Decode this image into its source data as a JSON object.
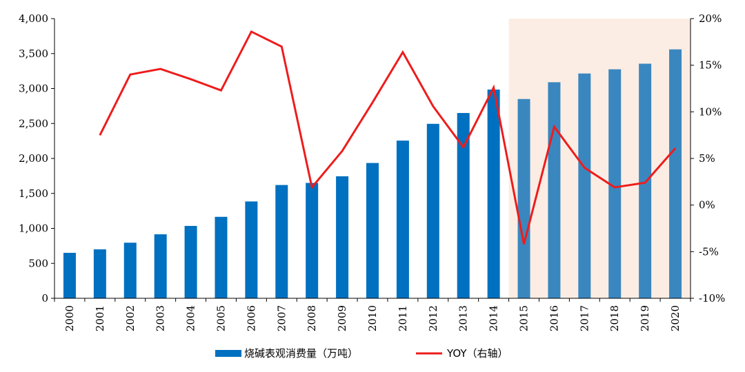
{
  "chart_data": {
    "type": "bar",
    "categories": [
      "2000",
      "2001",
      "2002",
      "2003",
      "2004",
      "2005",
      "2006",
      "2007",
      "2008",
      "2009",
      "2010",
      "2011",
      "2012",
      "2013",
      "2014",
      "2015",
      "2016",
      "2017",
      "2018",
      "2019",
      "2020"
    ],
    "series": [
      {
        "name": "烧碱表观消费量（万吨）",
        "type": "bar",
        "axis": "left",
        "color": "#0070C0",
        "forecast_color": "#3A87C0",
        "values": [
          650,
          700,
          795,
          915,
          1035,
          1165,
          1385,
          1620,
          1650,
          1745,
          1935,
          2255,
          2495,
          2650,
          2985,
          2850,
          3090,
          3215,
          3275,
          3355,
          3560
        ]
      },
      {
        "name": "YOY（右轴）",
        "type": "line",
        "axis": "right",
        "color": "#EE1C1C",
        "values": [
          null,
          7.5,
          14.0,
          14.6,
          13.5,
          12.3,
          18.6,
          17.0,
          1.9,
          5.8,
          11.0,
          16.4,
          10.6,
          6.2,
          12.6,
          -4.2,
          8.4,
          4.0,
          1.9,
          2.4,
          6.1
        ]
      }
    ],
    "forecast_shading": {
      "from": "2015",
      "to": "2020",
      "color": "#FBEDE3"
    },
    "y_left": {
      "ylim": [
        0,
        4000
      ],
      "ticks": [
        0,
        500,
        1000,
        1500,
        2000,
        2500,
        3000,
        3500,
        4000
      ],
      "tick_labels": [
        "0",
        "500",
        "1,000",
        "1,500",
        "2,000",
        "2,500",
        "3,000",
        "3,500",
        "4,000"
      ]
    },
    "y_right": {
      "ylim": [
        -10,
        20
      ],
      "ticks": [
        -10,
        -5,
        0,
        5,
        10,
        15,
        20
      ],
      "tick_labels": [
        "-10%",
        "-5%",
        "0%",
        "5%",
        "10%",
        "15%",
        "20%"
      ]
    },
    "legend": {
      "placement": "bottom",
      "items": [
        "烧碱表观消费量（万吨）",
        "YOY（右轴）"
      ]
    },
    "grid": false
  }
}
